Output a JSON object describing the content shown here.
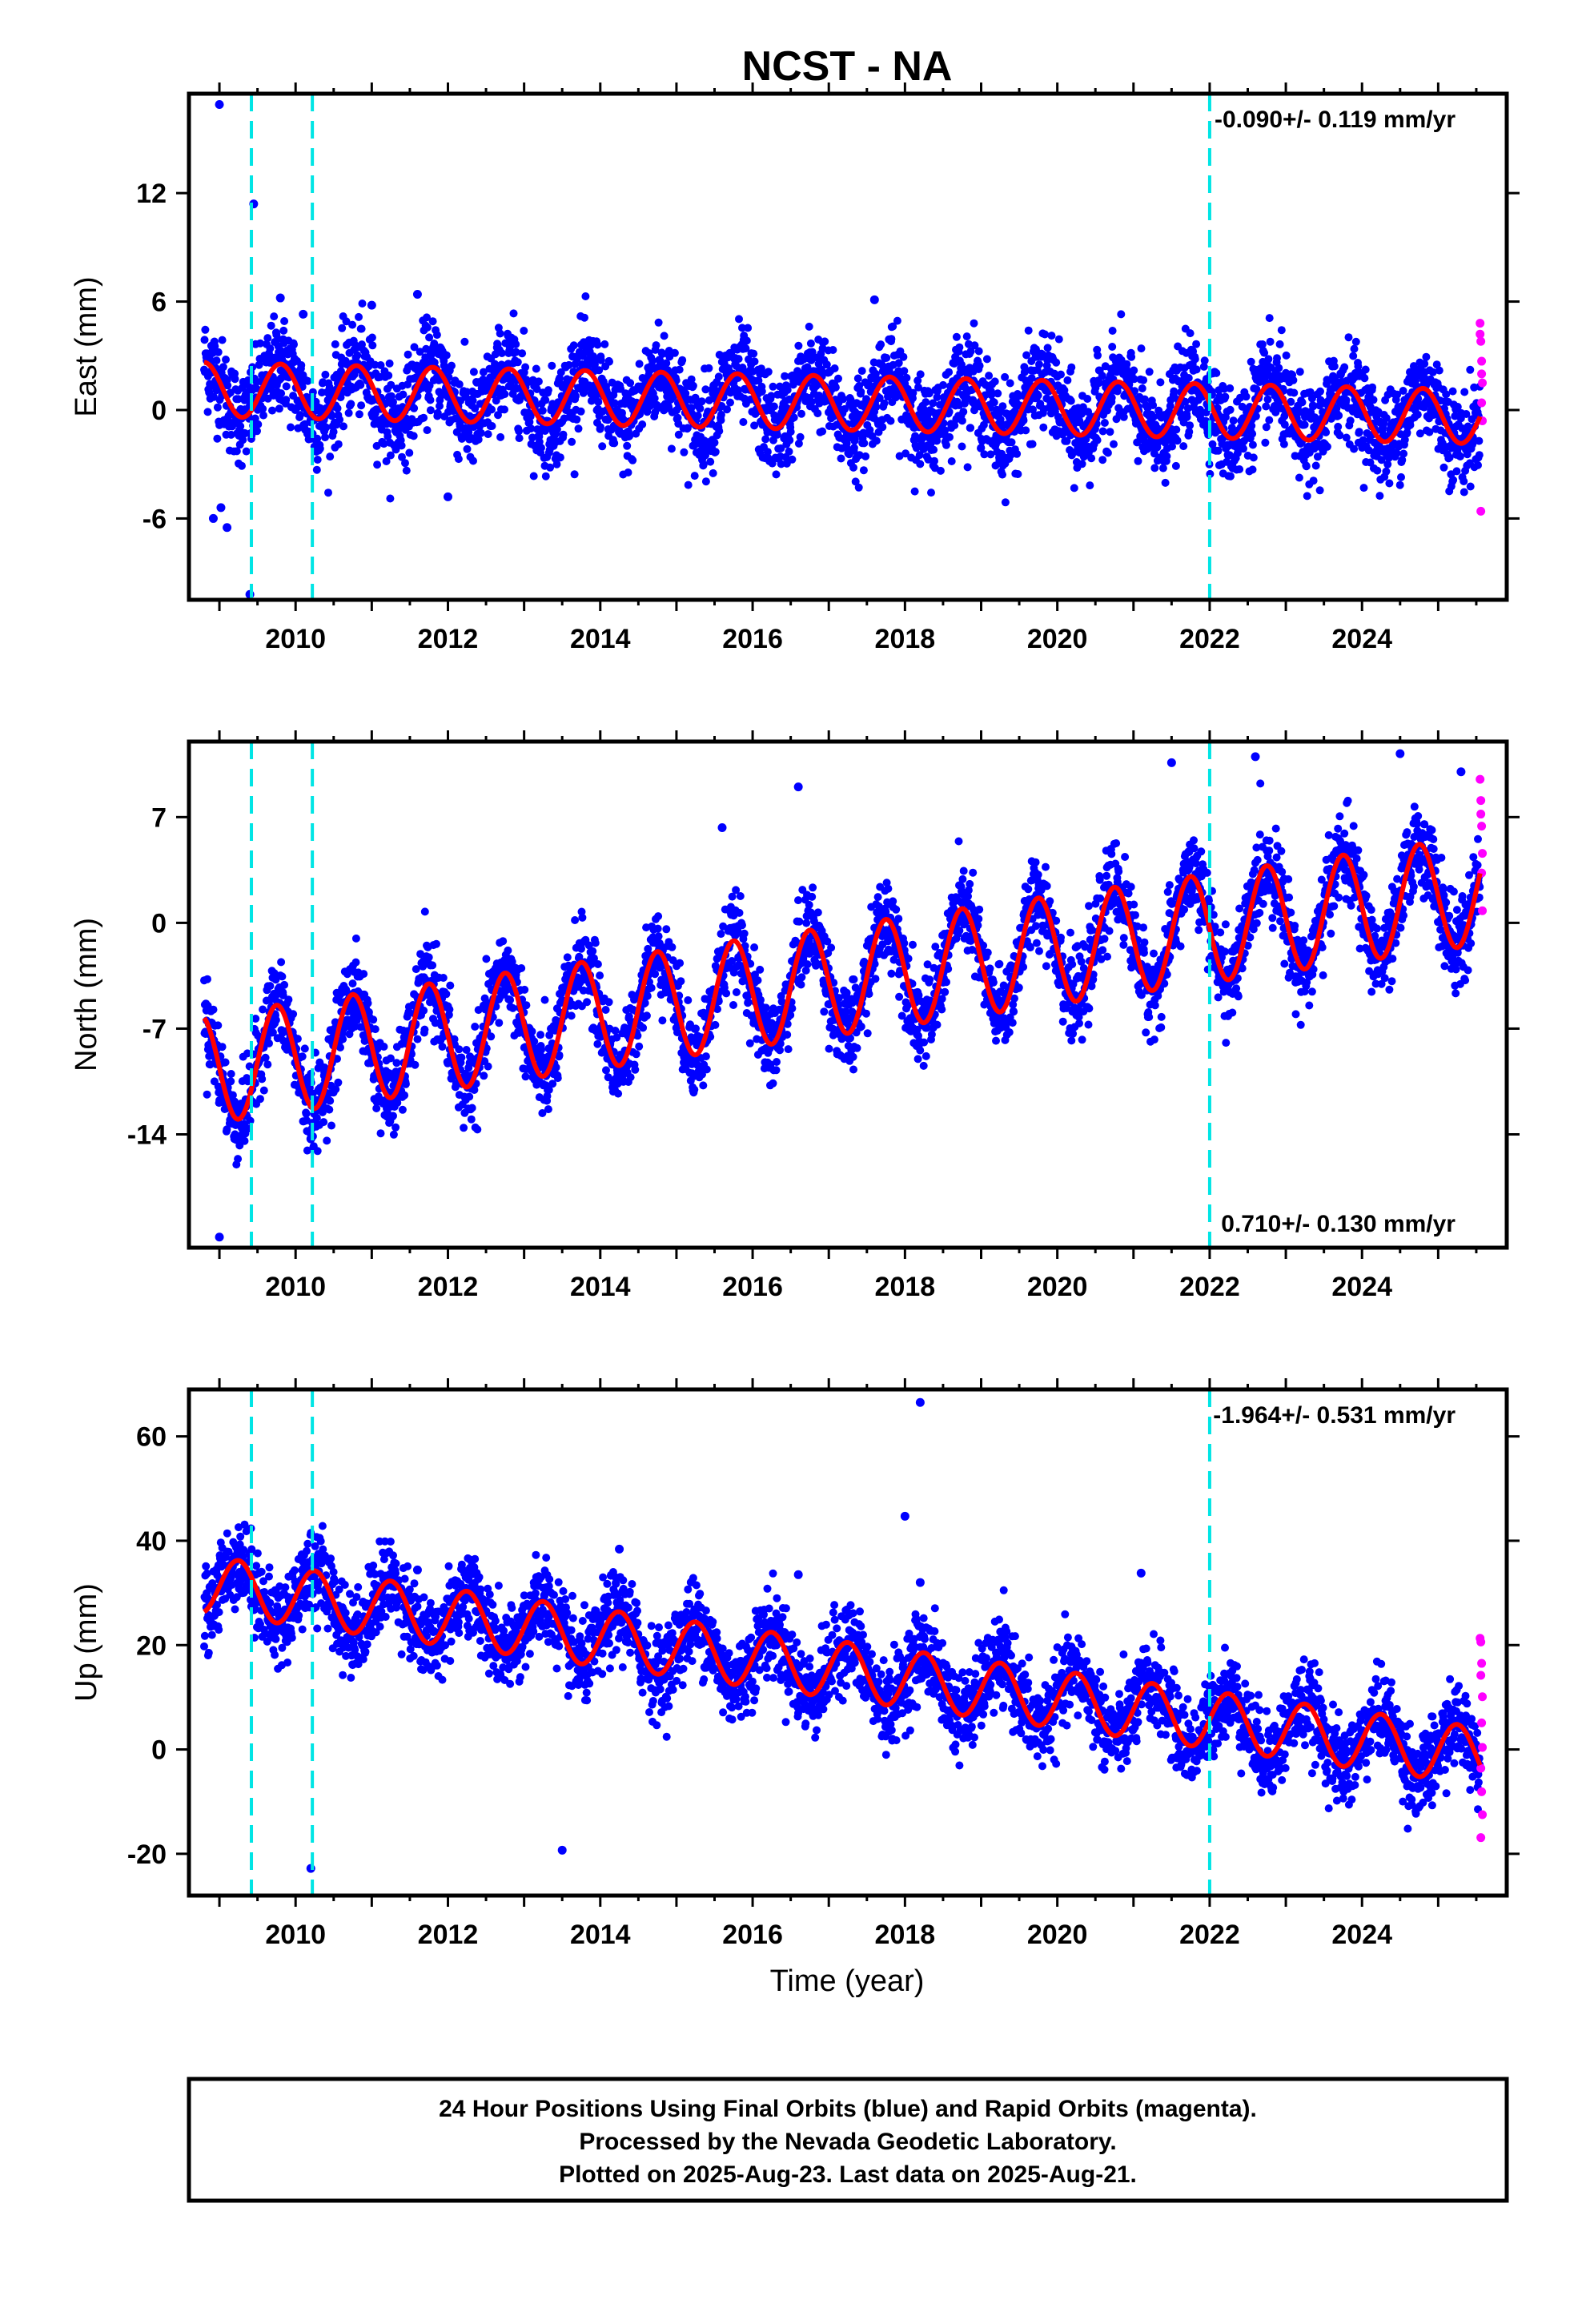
{
  "title": "NCST - NA",
  "colors": {
    "final_orbits": "#0000ff",
    "rapid_orbits": "#ff00ff",
    "model_fit": "#ff0000",
    "event_lines": "#00e5e5",
    "frame": "#000000"
  },
  "x_axis": {
    "label": "Time (year)",
    "range": [
      2008.6,
      2025.9
    ],
    "ticks": [
      "2010",
      "2012",
      "2014",
      "2016",
      "2018",
      "2020",
      "2022",
      "2024"
    ],
    "tick_values": [
      2010,
      2012,
      2014,
      2016,
      2018,
      2020,
      2022,
      2024
    ]
  },
  "event_line_dates": [
    2009.42,
    2010.22,
    2022.0
  ],
  "chart_data": [
    {
      "type": "scatter",
      "name": "east",
      "ylabel": "East (mm)",
      "ylim": [
        -10.5,
        17.5
      ],
      "yticks": [
        "12",
        "6",
        "0",
        "-6"
      ],
      "ytick_values": [
        12,
        6,
        0,
        -6
      ],
      "rate": "-0.090+/- 0.119 mm/yr",
      "rate_position": "top-right",
      "trend": {
        "rate": -0.09,
        "offset": 0.4,
        "amplitude": 1.5,
        "phase": 0.55,
        "scatter": 1.3
      },
      "outliers": [
        [
          2009.0,
          16.9
        ],
        [
          2009.45,
          11.4
        ],
        [
          2009.8,
          6.2
        ],
        [
          2010.1,
          5.3
        ],
        [
          2011.0,
          5.8
        ],
        [
          2011.6,
          6.4
        ],
        [
          2017.6,
          6.1
        ],
        [
          2008.92,
          -6.0
        ],
        [
          2009.1,
          -6.5
        ],
        [
          2009.4,
          -10.2
        ],
        [
          2009.02,
          -5.4
        ],
        [
          2012.0,
          -4.8
        ]
      ],
      "rapid_points": [
        [
          2025.55,
          4.8
        ],
        [
          2025.56,
          3.8
        ],
        [
          2025.57,
          2.7
        ],
        [
          2025.58,
          1.5
        ],
        [
          2025.57,
          0.4
        ],
        [
          2025.58,
          -0.6
        ],
        [
          2025.56,
          -5.6
        ],
        [
          2025.55,
          4.2
        ],
        [
          2025.57,
          2.0
        ]
      ]
    },
    {
      "type": "scatter",
      "name": "north",
      "ylabel": "North (mm)",
      "ylim": [
        -21.5,
        12.0
      ],
      "yticks": [
        "7",
        "0",
        "-7",
        "-14"
      ],
      "ytick_values": [
        7,
        0,
        -7,
        -14
      ],
      "rate": "0.710+/- 0.130 mm/yr",
      "rate_position": "bottom-right",
      "trend": {
        "rate": 0.71,
        "offset": -3.9,
        "amplitude": 3.6,
        "phase": 0.5,
        "scatter": 1.4
      },
      "outliers": [
        [
          2009.0,
          -20.8
        ],
        [
          2010.2,
          -14.3
        ],
        [
          2015.6,
          6.3
        ],
        [
          2016.6,
          9.0
        ],
        [
          2021.5,
          10.6
        ],
        [
          2022.6,
          11.0
        ],
        [
          2024.5,
          11.2
        ],
        [
          2025.3,
          10.0
        ]
      ],
      "rapid_points": [
        [
          2025.55,
          9.5
        ],
        [
          2025.56,
          8.1
        ],
        [
          2025.57,
          6.4
        ],
        [
          2025.58,
          4.6
        ],
        [
          2025.57,
          3.3
        ],
        [
          2025.58,
          0.8
        ],
        [
          2025.56,
          7.2
        ]
      ]
    },
    {
      "type": "scatter",
      "name": "up",
      "ylabel": "Up (mm)",
      "ylim": [
        -28.0,
        69.0
      ],
      "yticks": [
        "60",
        "40",
        "20",
        "0",
        "-20"
      ],
      "ytick_values": [
        60,
        40,
        20,
        0,
        -20
      ],
      "rate": "-1.964+/- 0.531 mm/yr",
      "rate_position": "top-right",
      "trend": {
        "rate": -1.964,
        "offset": 15.5,
        "amplitude": 5.5,
        "phase": 0.0,
        "scatter": 4.0
      },
      "outliers": [
        [
          2018.2,
          66.5
        ],
        [
          2018.0,
          44.7
        ],
        [
          2018.2,
          32.0
        ],
        [
          2014.25,
          38.4
        ],
        [
          2021.1,
          33.8
        ],
        [
          2015.2,
          32.1
        ],
        [
          2016.6,
          33.5
        ],
        [
          2011.6,
          34.4
        ],
        [
          2010.2,
          -22.8
        ],
        [
          2009.45,
          26.8
        ],
        [
          2013.5,
          -19.3
        ]
      ],
      "rapid_points": [
        [
          2025.55,
          21.3
        ],
        [
          2025.56,
          20.6
        ],
        [
          2025.57,
          16.5
        ],
        [
          2025.56,
          14.2
        ],
        [
          2025.58,
          10.1
        ],
        [
          2025.57,
          5.1
        ],
        [
          2025.58,
          0.4
        ],
        [
          2025.56,
          -3.6
        ],
        [
          2025.57,
          -8.1
        ],
        [
          2025.58,
          -12.5
        ],
        [
          2025.56,
          -16.9
        ]
      ]
    }
  ],
  "caption": {
    "line1": "24 Hour Positions Using Final Orbits (blue) and Rapid Orbits (magenta).",
    "line2": "Processed by the Nevada Geodetic Laboratory.",
    "line3": "Plotted on 2025-Aug-23. Last data on 2025-Aug-21."
  }
}
